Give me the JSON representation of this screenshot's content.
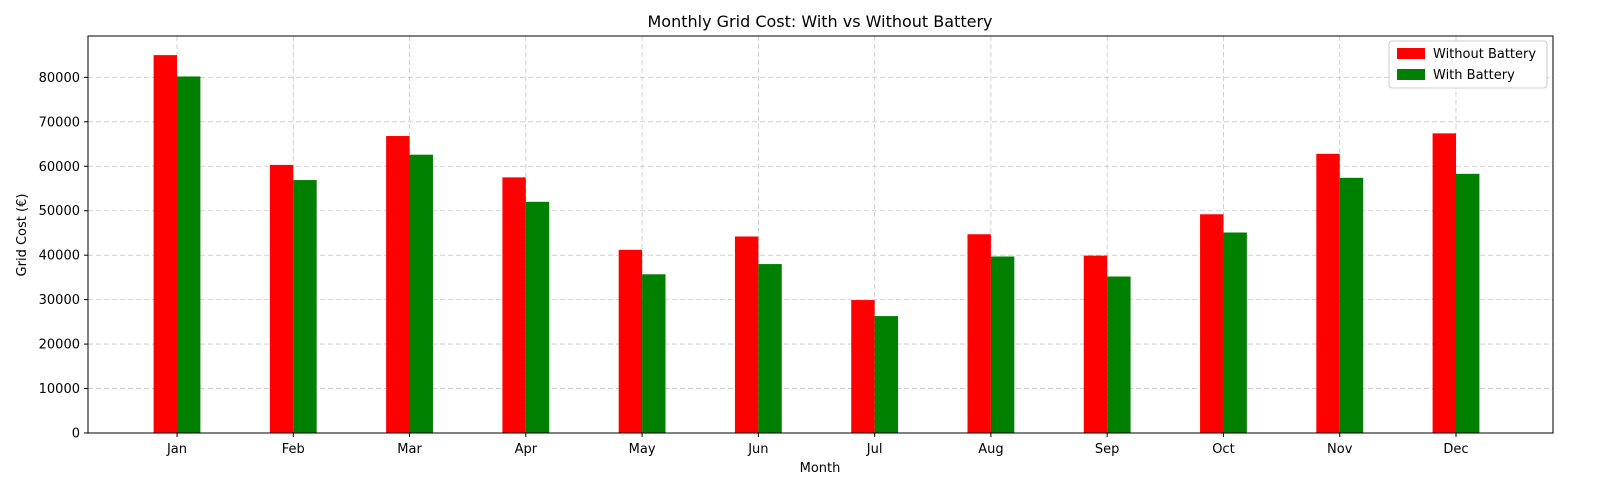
{
  "chart_data": {
    "type": "bar",
    "title": "Monthly Grid Cost: With vs Without Battery",
    "xlabel": "Month",
    "ylabel": "Grid Cost (€)",
    "categories": [
      "Jan",
      "Feb",
      "Mar",
      "Apr",
      "May",
      "Jun",
      "Jul",
      "Aug",
      "Sep",
      "Oct",
      "Nov",
      "Dec"
    ],
    "series": [
      {
        "name": "Without Battery",
        "color": "#ff0000",
        "values": [
          85000,
          60300,
          66800,
          57500,
          41200,
          44200,
          29900,
          44700,
          39900,
          49200,
          62800,
          67400
        ]
      },
      {
        "name": "With Battery",
        "color": "#008000",
        "values": [
          80200,
          56900,
          62600,
          52000,
          35700,
          38000,
          26300,
          39700,
          35200,
          45100,
          57400,
          58300
        ]
      }
    ],
    "ylim": [
      0,
      89300
    ],
    "yticks": [
      0,
      10000,
      20000,
      30000,
      40000,
      50000,
      60000,
      70000,
      80000
    ],
    "ytick_labels": [
      "0",
      "10000",
      "20000",
      "30000",
      "40000",
      "50000",
      "60000",
      "70000",
      "80000"
    ],
    "grid": true,
    "legend_position": "top-right"
  }
}
